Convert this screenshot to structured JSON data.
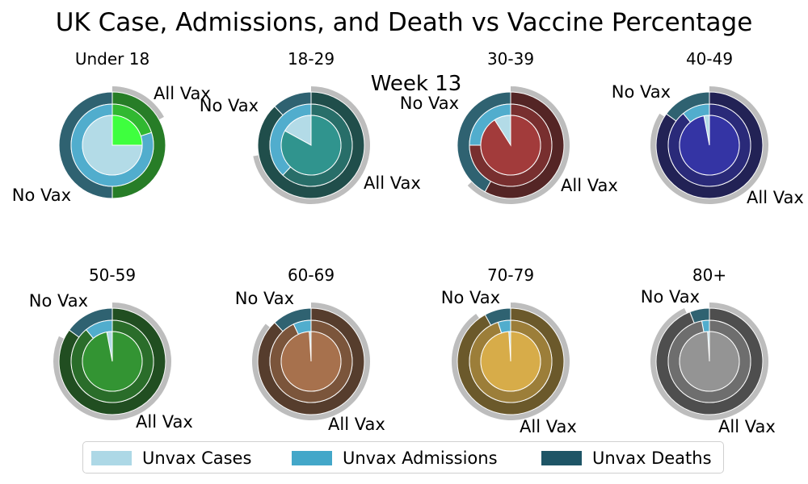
{
  "title": "UK Case, Admissions, and Death vs Vaccine Percentage",
  "week_label": "Week 13",
  "chart_data": [
    {
      "type": "pie",
      "title": "Under 18",
      "ring_series": [
        "Deaths",
        "Admissions",
        "Cases"
      ],
      "unvax_pct": {
        "deaths": 50,
        "admissions": 80,
        "cases": 75
      },
      "vax_outer_pct": 17,
      "vax_color": "#2eff2e",
      "vax_labels": [
        "All Vax",
        "No Vax"
      ]
    },
    {
      "type": "pie",
      "title": "18-29",
      "ring_series": [
        "Deaths",
        "Admissions",
        "Cases"
      ],
      "unvax_pct": {
        "deaths": 12,
        "admissions": 38,
        "cases": 17
      },
      "vax_outer_pct": 72,
      "vax_color": "#1f8c85",
      "vax_labels": [
        "All Vax",
        "No Vax"
      ]
    },
    {
      "type": "pie",
      "title": "30-39",
      "ring_series": [
        "Deaths",
        "Admissions",
        "Cases"
      ],
      "unvax_pct": {
        "deaths": 42,
        "admissions": 25,
        "cases": 9
      },
      "vax_outer_pct": 63,
      "vax_color": "#9b2b2b",
      "vax_labels": [
        "All Vax",
        "No Vax"
      ]
    },
    {
      "type": "pie",
      "title": "40-49",
      "ring_series": [
        "Deaths",
        "Admissions",
        "Cases"
      ],
      "unvax_pct": {
        "deaths": 15,
        "admissions": 11,
        "cases": 3
      },
      "vax_outer_pct": 84,
      "vax_color": "#23239d",
      "vax_labels": [
        "All Vax",
        "No Vax"
      ]
    },
    {
      "type": "pie",
      "title": "50-59",
      "ring_series": [
        "Deaths",
        "Admissions",
        "Cases"
      ],
      "unvax_pct": {
        "deaths": 15,
        "admissions": 11,
        "cases": 3
      },
      "vax_outer_pct": 82,
      "vax_color": "#228b22",
      "vax_labels": [
        "All Vax",
        "No Vax"
      ]
    },
    {
      "type": "pie",
      "title": "60-69",
      "ring_series": [
        "Deaths",
        "Admissions",
        "Cases"
      ],
      "unvax_pct": {
        "deaths": 12,
        "admissions": 7,
        "cases": 1
      },
      "vax_outer_pct": 86,
      "vax_color": "#a0653e",
      "vax_labels": [
        "All Vax",
        "No Vax"
      ]
    },
    {
      "type": "pie",
      "title": "70-79",
      "ring_series": [
        "Deaths",
        "Admissions",
        "Cases"
      ],
      "unvax_pct": {
        "deaths": 8,
        "admissions": 5,
        "cases": 1
      },
      "vax_outer_pct": 90,
      "vax_color": "#d4a63a",
      "vax_labels": [
        "All Vax",
        "No Vax"
      ]
    },
    {
      "type": "pie",
      "title": "80+",
      "ring_series": [
        "Deaths",
        "Admissions",
        "Cases"
      ],
      "unvax_pct": {
        "deaths": 6,
        "admissions": 3,
        "cases": 1
      },
      "vax_outer_pct": 93,
      "vax_color": "#8c8c8c",
      "vax_labels": [
        "All Vax",
        "No Vax"
      ]
    }
  ],
  "legend": [
    {
      "label": "Unvax Cases",
      "color": "#add8e6"
    },
    {
      "label": "Unvax Admissions",
      "color": "#43a7c9"
    },
    {
      "label": "Unvax Deaths",
      "color": "#1e5566"
    }
  ],
  "colors": {
    "unvax_cases": "#add8e6",
    "unvax_admissions": "#43a7c9",
    "unvax_deaths": "#1e5566",
    "vax_ring_outline": "#bdbdbd"
  }
}
